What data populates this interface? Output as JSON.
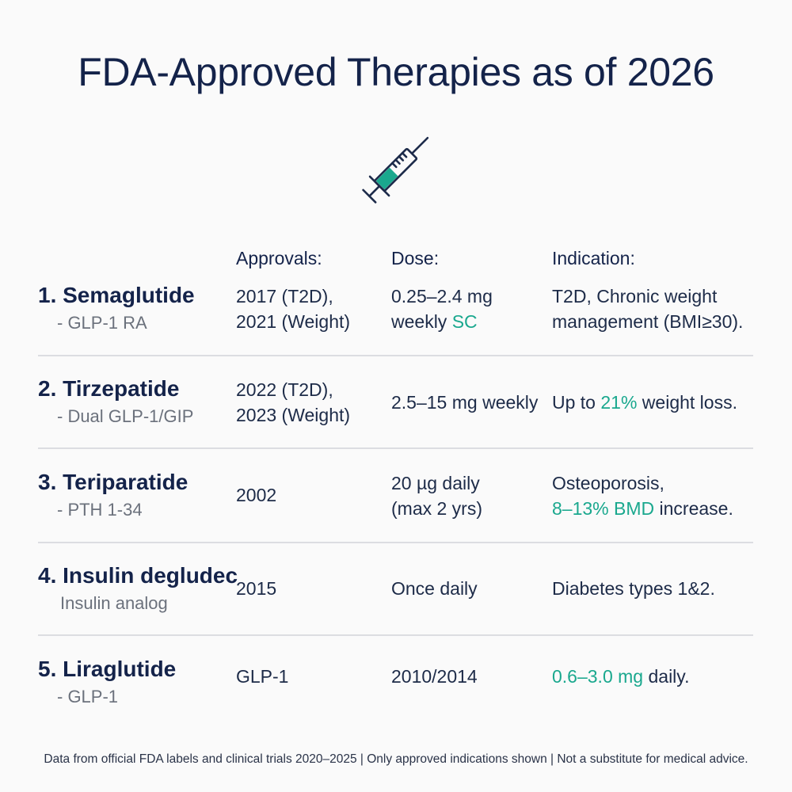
{
  "title": "FDA-Approved Therapies as of 2026",
  "icon": "syringe-icon",
  "colors": {
    "accent": "#1aa88e",
    "navy": "#14234a",
    "muted": "#6b717c"
  },
  "headers": {
    "approvals": "Approvals:",
    "dose": "Dose:",
    "indication": "Indication:"
  },
  "rows": [
    {
      "name": "1. Semaglutide",
      "drug_class": "- GLP-1 RA",
      "approvals": [
        "2017 (T2D),",
        "2021 (Weight)"
      ],
      "dose_line1": "0.25–2.4 mg",
      "dose_line2_pre": "weekly ",
      "dose_line2_hl": "SC",
      "indication": [
        "T2D, Chronic weight",
        "management (BMI≥30)."
      ]
    },
    {
      "name": "2. Tirzepatide",
      "drug_class": "- Dual GLP-1/GIP",
      "approvals": [
        "2022 (T2D),",
        "2023 (Weight)"
      ],
      "dose": "2.5–15 mg weekly",
      "indication_pre": "Up to ",
      "indication_hl": "21%",
      "indication_post": " weight loss."
    },
    {
      "name": "3. Teriparatide",
      "drug_class": "- PTH 1-34",
      "approvals": "2002",
      "dose": [
        "20 µg daily",
        "(max 2 yrs)"
      ],
      "indication_line1": "Osteoporosis,",
      "indication_hl": "8–13% BMD",
      "indication_post": " increase."
    },
    {
      "name": "4. Insulin degludec",
      "drug_class": "Insulin analog",
      "approvals": "2015",
      "dose": "Once daily",
      "indication": "Diabetes types 1&2."
    },
    {
      "name": "5. Liraglutide",
      "drug_class": "- GLP-1",
      "approvals": "GLP-1",
      "dose": "2010/2014",
      "indication_hl": "0.6–3.0 mg",
      "indication_post": " daily."
    }
  ],
  "footer": "Data from official FDA labels and clinical trials 2020–2025 | Only approved indications shown | Not a substitute for medical advice."
}
